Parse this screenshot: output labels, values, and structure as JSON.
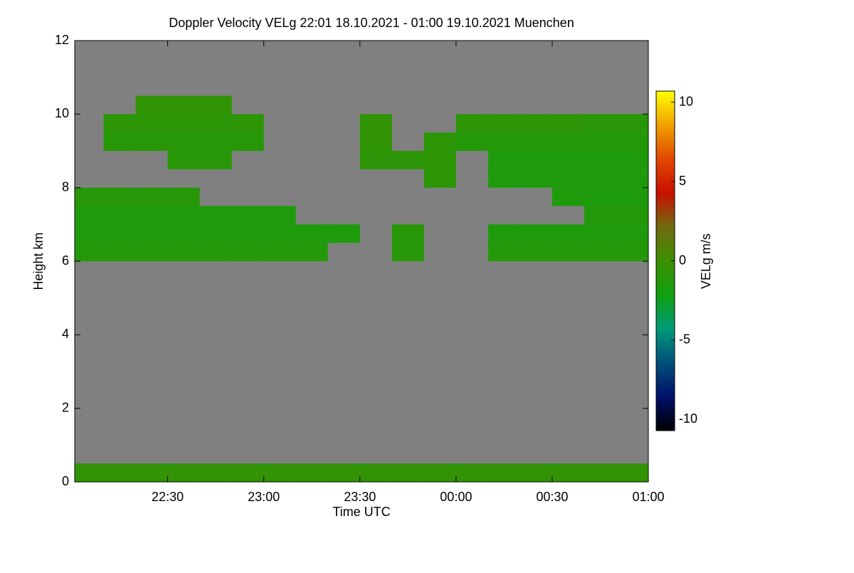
{
  "chart_data": {
    "type": "heatmap",
    "title": "Doppler Velocity VELg   22:01 18.10.2021 - 01:00 19.10.2021 Muenchen",
    "x_label": "Time UTC",
    "y_label": "Height km",
    "colorbar_label": "VELg m/s",
    "xlim": [
      22.0167,
      25.0
    ],
    "ylim": [
      0,
      12
    ],
    "xticks": [
      {
        "value": 22.5,
        "label": "22:30"
      },
      {
        "value": 23.0,
        "label": "23:00"
      },
      {
        "value": 23.5,
        "label": "23:30"
      },
      {
        "value": 24.0,
        "label": "00:00"
      },
      {
        "value": 24.5,
        "label": "00:30"
      },
      {
        "value": 25.0,
        "label": "01:00"
      }
    ],
    "yticks": [
      0,
      2,
      4,
      6,
      8,
      10,
      12
    ],
    "x": [
      22.0833,
      22.25,
      22.4167,
      22.5833,
      22.75,
      22.9167,
      23.0833,
      23.25,
      23.4167,
      23.5833,
      23.75,
      23.9167,
      24.0833,
      24.25,
      24.4167,
      24.5833,
      24.75,
      24.9167
    ],
    "y": [
      0.25,
      0.75,
      1.25,
      1.75,
      2.25,
      2.75,
      3.25,
      3.75,
      4.25,
      4.75,
      5.25,
      5.75,
      6.25,
      6.75,
      7.25,
      7.75,
      8.25,
      8.75,
      9.25,
      9.75,
      10.25,
      10.75,
      11.25,
      11.75
    ],
    "z": [
      [
        -0.5,
        -0.5,
        -0.5,
        -0.5,
        -0.5,
        -0.5,
        -0.5,
        -0.5,
        -0.5,
        -0.5,
        -0.5,
        -0.5,
        -0.5,
        -0.5,
        -0.5,
        -0.5,
        -0.5,
        -0.5
      ],
      [
        null,
        null,
        null,
        null,
        null,
        null,
        null,
        null,
        null,
        null,
        null,
        null,
        null,
        null,
        null,
        null,
        null,
        null
      ],
      [
        null,
        null,
        null,
        null,
        null,
        null,
        null,
        null,
        null,
        null,
        null,
        null,
        null,
        null,
        null,
        null,
        null,
        null
      ],
      [
        null,
        null,
        null,
        null,
        null,
        null,
        null,
        null,
        null,
        null,
        null,
        null,
        null,
        null,
        null,
        null,
        null,
        null
      ],
      [
        null,
        null,
        null,
        null,
        null,
        null,
        null,
        null,
        null,
        null,
        null,
        null,
        null,
        null,
        null,
        null,
        null,
        null
      ],
      [
        null,
        null,
        null,
        null,
        null,
        null,
        null,
        null,
        null,
        null,
        null,
        null,
        null,
        null,
        null,
        null,
        null,
        null
      ],
      [
        null,
        null,
        null,
        null,
        null,
        null,
        null,
        null,
        null,
        null,
        null,
        null,
        null,
        null,
        null,
        null,
        null,
        null
      ],
      [
        null,
        null,
        null,
        null,
        null,
        null,
        null,
        null,
        null,
        null,
        null,
        null,
        null,
        null,
        null,
        null,
        null,
        null
      ],
      [
        null,
        null,
        null,
        null,
        null,
        null,
        null,
        null,
        null,
        null,
        null,
        null,
        null,
        null,
        null,
        null,
        null,
        null
      ],
      [
        null,
        null,
        null,
        null,
        null,
        null,
        null,
        null,
        null,
        null,
        null,
        null,
        null,
        null,
        null,
        null,
        null,
        null
      ],
      [
        null,
        null,
        null,
        null,
        null,
        null,
        null,
        null,
        null,
        null,
        null,
        null,
        null,
        null,
        null,
        null,
        null,
        null
      ],
      [
        null,
        null,
        null,
        null,
        null,
        null,
        null,
        null,
        null,
        null,
        null,
        null,
        null,
        null,
        null,
        null,
        null,
        null
      ],
      [
        -1.2,
        -1.2,
        -1.2,
        -1.2,
        -1.2,
        -1.2,
        -1.2,
        -1.2,
        null,
        null,
        -1.0,
        null,
        null,
        -1.2,
        -1.2,
        -1.2,
        -1.2,
        -1.2
      ],
      [
        -1.5,
        -1.5,
        -1.5,
        -1.5,
        -1.5,
        -1.5,
        -1.5,
        -1.5,
        -1.5,
        null,
        -1.0,
        null,
        null,
        -1.5,
        -1.5,
        -1.5,
        -1.5,
        -1.5
      ],
      [
        -1.5,
        -1.5,
        -1.5,
        -1.5,
        -1.5,
        -1.5,
        -1.5,
        null,
        null,
        null,
        null,
        null,
        null,
        null,
        null,
        null,
        -1.2,
        -1.2
      ],
      [
        -1.0,
        -1.0,
        -1.0,
        -1.0,
        null,
        null,
        null,
        null,
        null,
        null,
        null,
        null,
        null,
        null,
        null,
        -1.5,
        -1.5,
        -1.5
      ],
      [
        null,
        null,
        null,
        null,
        null,
        null,
        null,
        null,
        null,
        null,
        null,
        -0.8,
        null,
        -1.5,
        -1.5,
        -1.5,
        -1.5,
        -1.5
      ],
      [
        null,
        null,
        null,
        -1.0,
        -1.0,
        null,
        null,
        null,
        null,
        -0.8,
        -0.8,
        -0.8,
        null,
        -1.5,
        -1.5,
        -1.5,
        -1.5,
        -1.5
      ],
      [
        null,
        -1.0,
        -1.0,
        -1.0,
        -1.0,
        -1.0,
        null,
        null,
        null,
        -0.6,
        null,
        -0.8,
        -1.2,
        -1.2,
        -1.2,
        -1.2,
        -1.2,
        -1.2
      ],
      [
        null,
        -0.8,
        -0.8,
        -0.8,
        -0.8,
        -0.8,
        null,
        null,
        null,
        -0.6,
        null,
        null,
        -0.8,
        -0.8,
        -0.8,
        -0.8,
        -1.0,
        -1.0
      ],
      [
        null,
        null,
        -0.6,
        -0.6,
        -0.6,
        null,
        null,
        null,
        null,
        null,
        null,
        null,
        null,
        null,
        null,
        null,
        null,
        null
      ],
      [
        null,
        null,
        null,
        null,
        null,
        null,
        null,
        null,
        null,
        null,
        null,
        null,
        null,
        null,
        null,
        null,
        null,
        null
      ],
      [
        null,
        null,
        null,
        null,
        null,
        null,
        null,
        null,
        null,
        null,
        null,
        null,
        null,
        null,
        null,
        null,
        null,
        null
      ],
      [
        null,
        null,
        null,
        null,
        null,
        null,
        null,
        null,
        null,
        null,
        null,
        null,
        null,
        null,
        null,
        null,
        null,
        null
      ]
    ],
    "no_data_color": "#808080",
    "clim": [
      -10.7,
      10.7
    ],
    "cticks": [
      -10,
      -5,
      0,
      5,
      10
    ],
    "colormap": [
      "#000000",
      "#00106a",
      "#00507a",
      "#009a78",
      "#10a010",
      "#3c9000",
      "#706a10",
      "#c81000",
      "#e04800",
      "#f0a000",
      "#ffff00"
    ]
  }
}
